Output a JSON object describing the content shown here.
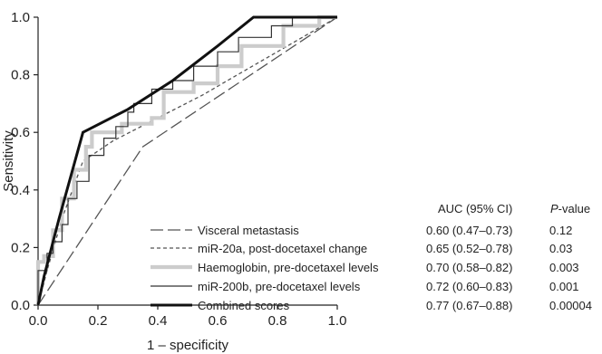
{
  "chart_data": {
    "type": "line",
    "xlabel": "1 – specificity",
    "ylabel": "Sensitivity",
    "xlim": [
      0,
      1
    ],
    "ylim": [
      0,
      1
    ],
    "x_ticks": [
      "0.0",
      "0.2",
      "0.4",
      "0.6",
      "0.8",
      "1.0"
    ],
    "y_ticks": [
      "0.0",
      "0.2",
      "0.4",
      "0.6",
      "0.8",
      "1.0"
    ],
    "grid": false,
    "legend_position": "bottom-right",
    "table": {
      "header_auc": "AUC (95% CI)",
      "header_p_italic": "P",
      "header_p_rest": "-value"
    },
    "series": [
      {
        "name": "Visceral metastasis",
        "auc": "0.60 (0.47–0.73)",
        "p": "0.12",
        "color": "#555555",
        "style": "longdash",
        "points": [
          [
            0,
            0
          ],
          [
            0.35,
            0.55
          ],
          [
            1,
            1
          ]
        ]
      },
      {
        "name": "miR-20a, post-docetaxel change",
        "auc": "0.65 (0.52–0.78)",
        "p": "0.03",
        "color": "#555555",
        "style": "shortdash",
        "points": [
          [
            0,
            0
          ],
          [
            0.03,
            0.12
          ],
          [
            0.08,
            0.3
          ],
          [
            0.15,
            0.5
          ],
          [
            0.25,
            0.57
          ],
          [
            0.4,
            0.65
          ],
          [
            0.55,
            0.73
          ],
          [
            0.7,
            0.82
          ],
          [
            0.85,
            0.91
          ],
          [
            1,
            1
          ]
        ]
      },
      {
        "name": "Haemoglobin, pre-docetaxel levels",
        "auc": "0.70 (0.58–0.82)",
        "p": "0.003",
        "color": "#cccccc",
        "style": "thick",
        "points": [
          [
            0.0,
            0.0
          ],
          [
            0.0,
            0.15
          ],
          [
            0.02,
            0.15
          ],
          [
            0.02,
            0.17
          ],
          [
            0.05,
            0.17
          ],
          [
            0.05,
            0.26
          ],
          [
            0.08,
            0.26
          ],
          [
            0.08,
            0.37
          ],
          [
            0.12,
            0.37
          ],
          [
            0.12,
            0.47
          ],
          [
            0.16,
            0.47
          ],
          [
            0.16,
            0.55
          ],
          [
            0.18,
            0.55
          ],
          [
            0.18,
            0.6
          ],
          [
            0.28,
            0.6
          ],
          [
            0.28,
            0.63
          ],
          [
            0.38,
            0.63
          ],
          [
            0.38,
            0.65
          ],
          [
            0.42,
            0.65
          ],
          [
            0.42,
            0.74
          ],
          [
            0.52,
            0.74
          ],
          [
            0.52,
            0.77
          ],
          [
            0.6,
            0.77
          ],
          [
            0.6,
            0.83
          ],
          [
            0.68,
            0.83
          ],
          [
            0.68,
            0.9
          ],
          [
            0.82,
            0.9
          ],
          [
            0.82,
            0.97
          ],
          [
            0.94,
            0.97
          ],
          [
            0.94,
            1.0
          ],
          [
            1.0,
            1.0
          ]
        ]
      },
      {
        "name": "miR-200b, pre-docetaxel levels",
        "auc": "0.72 (0.60–0.83)",
        "p": "0.001",
        "color": "#333333",
        "style": "thin",
        "points": [
          [
            0.0,
            0.0
          ],
          [
            0.0,
            0.12
          ],
          [
            0.03,
            0.12
          ],
          [
            0.03,
            0.18
          ],
          [
            0.05,
            0.18
          ],
          [
            0.05,
            0.22
          ],
          [
            0.08,
            0.22
          ],
          [
            0.08,
            0.28
          ],
          [
            0.1,
            0.28
          ],
          [
            0.1,
            0.37
          ],
          [
            0.13,
            0.37
          ],
          [
            0.13,
            0.43
          ],
          [
            0.17,
            0.43
          ],
          [
            0.17,
            0.52
          ],
          [
            0.22,
            0.52
          ],
          [
            0.22,
            0.58
          ],
          [
            0.26,
            0.58
          ],
          [
            0.26,
            0.62
          ],
          [
            0.3,
            0.62
          ],
          [
            0.3,
            0.67
          ],
          [
            0.32,
            0.67
          ],
          [
            0.32,
            0.7
          ],
          [
            0.38,
            0.7
          ],
          [
            0.38,
            0.75
          ],
          [
            0.45,
            0.75
          ],
          [
            0.45,
            0.78
          ],
          [
            0.52,
            0.78
          ],
          [
            0.52,
            0.83
          ],
          [
            0.6,
            0.83
          ],
          [
            0.6,
            0.88
          ],
          [
            0.67,
            0.88
          ],
          [
            0.67,
            0.93
          ],
          [
            0.78,
            0.93
          ],
          [
            0.78,
            0.97
          ],
          [
            0.85,
            0.97
          ],
          [
            0.85,
            1.0
          ],
          [
            1.0,
            1.0
          ]
        ]
      },
      {
        "name": "Combined scores",
        "auc": "0.77 (0.67–0.88)",
        "p": "0.00004",
        "color": "#111111",
        "style": "bold",
        "points": [
          [
            0,
            0
          ],
          [
            0.02,
            0.1
          ],
          [
            0.07,
            0.3
          ],
          [
            0.15,
            0.6
          ],
          [
            0.3,
            0.68
          ],
          [
            0.45,
            0.78
          ],
          [
            0.6,
            0.9
          ],
          [
            0.72,
            1.0
          ],
          [
            1,
            1
          ]
        ]
      }
    ]
  }
}
